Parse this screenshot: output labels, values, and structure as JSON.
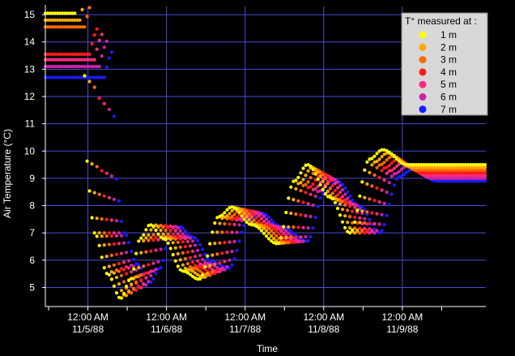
{
  "chart_data": {
    "type": "scatter",
    "xlabel": "Time",
    "ylabel": "Air Temperature (°C)",
    "ylim": [
      4.3,
      15.3
    ],
    "xlim": [
      "1988-11-04 11:00",
      "1988-11-10 01:30"
    ],
    "y_ticks": [
      "5",
      "6",
      "7",
      "8",
      "9",
      "10",
      "11",
      "12",
      "13",
      "14",
      "15"
    ],
    "x_ticks": [
      {
        "time": "1988-11-05 00:00",
        "line1": "12:00 AM",
        "line2": "11/5/88"
      },
      {
        "time": "1988-11-06 00:00",
        "line1": "12:00 AM",
        "line2": "11/6/88"
      },
      {
        "time": "1988-11-07 00:00",
        "line1": "12:00 AM",
        "line2": "11/7/88"
      },
      {
        "time": "1988-11-08 00:00",
        "line1": "12:00 AM",
        "line2": "11/8/88"
      },
      {
        "time": "1988-11-09 00:00",
        "line1": "12:00 AM",
        "line2": "11/9/88"
      }
    ],
    "grid": true,
    "legend": {
      "title": "T° measured at :",
      "position": "top-right"
    },
    "series": [
      {
        "name": "1 m",
        "color": "#ffff00",
        "lag_hours": 0,
        "points": [
          [
            "1988-11-04 11:00",
            15.05
          ],
          [
            "1988-11-04 20:00",
            15.05
          ],
          [
            "1988-11-04 22:00",
            14.1
          ],
          [
            "1988-11-04 23:00",
            12.0
          ],
          [
            "1988-11-05 00:00",
            8.8
          ],
          [
            "1988-11-05 02:00",
            7.0
          ],
          [
            "1988-11-05 06:00",
            5.5
          ],
          [
            "1988-11-05 10:00",
            4.6
          ],
          [
            "1988-11-05 13:00",
            5.3
          ],
          [
            "1988-11-05 16:00",
            6.8
          ],
          [
            "1988-11-05 19:00",
            7.3
          ],
          [
            "1988-11-05 23:00",
            6.8
          ],
          [
            "1988-11-06 05:00",
            5.6
          ],
          [
            "1988-11-06 10:00",
            5.3
          ],
          [
            "1988-11-06 16:00",
            7.6
          ],
          [
            "1988-11-06 20:00",
            7.95
          ],
          [
            "1988-11-07 02:00",
            7.3
          ],
          [
            "1988-11-07 10:00",
            6.6
          ],
          [
            "1988-11-07 15:00",
            8.9
          ],
          [
            "1988-11-07 19:00",
            9.5
          ],
          [
            "1988-11-08 02:00",
            8.3
          ],
          [
            "1988-11-08 08:00",
            7.0
          ],
          [
            "1988-11-08 14:00",
            9.7
          ],
          [
            "1988-11-08 18:00",
            10.05
          ],
          [
            "1988-11-09 01:30",
            9.5
          ]
        ]
      },
      {
        "name": "2 m",
        "color": "#ffaa00",
        "lag_hours": 1.5,
        "points": [
          [
            "1988-11-04 11:00",
            14.8
          ],
          [
            "1988-11-04 20:00",
            14.8
          ]
        ]
      },
      {
        "name": "3 m",
        "color": "#ff6a00",
        "lag_hours": 3,
        "points": [
          [
            "1988-11-04 11:00",
            14.55
          ],
          [
            "1988-11-04 20:00",
            14.55
          ]
        ]
      },
      {
        "name": "4 m",
        "color": "#ff1a1a",
        "lag_hours": 4.5,
        "points": [
          [
            "1988-11-04 11:00",
            13.55
          ],
          [
            "1988-11-04 20:00",
            13.55
          ]
        ]
      },
      {
        "name": "5 m",
        "color": "#ff2a7f",
        "lag_hours": 6,
        "points": [
          [
            "1988-11-04 11:00",
            13.35
          ],
          [
            "1988-11-04 20:00",
            13.35
          ]
        ]
      },
      {
        "name": "6 m",
        "color": "#cc22aa",
        "lag_hours": 7.5,
        "points": [
          [
            "1988-11-04 11:00",
            13.1
          ],
          [
            "1988-11-04 20:00",
            13.1
          ]
        ]
      },
      {
        "name": "7 m",
        "color": "#1a1aff",
        "lag_hours": 9,
        "points": [
          [
            "1988-11-04 11:00",
            12.7
          ],
          [
            "1988-11-04 20:00",
            12.7
          ]
        ]
      }
    ]
  }
}
